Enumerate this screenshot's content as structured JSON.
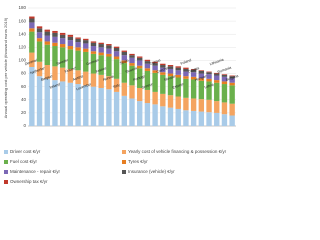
{
  "chart_data": {
    "type": "stacked-bar",
    "y_label": "Annual operating cost per vehicle (thousand euros 2019)",
    "categories": [
      "Denmark",
      "Netherlands",
      "Belgium",
      "Ireland",
      "Sweden",
      "Finland",
      "Austria",
      "Luxembourg",
      "Germany",
      "France",
      "Norway",
      "Italy",
      "Spain",
      "Slovenia",
      "Portugal",
      "Greece",
      "Cyprus",
      "Czechia",
      "Slovakia",
      "Estonia",
      "Poland",
      "Croatia",
      "Hungary",
      "Latvia",
      "Lithuania",
      "Romania",
      "Bulgaria"
    ],
    "series": [
      {
        "name": "Driver cost €/yr",
        "color": "#a9cbe8",
        "values": [
          90,
          76,
          72,
          70,
          68,
          66,
          64,
          62,
          60,
          58,
          56,
          52,
          46,
          42,
          38,
          35,
          33,
          30,
          28,
          26,
          24,
          23,
          22,
          21,
          20,
          18,
          16
        ]
      },
      {
        "name": "Yearly cost of vehicle financing & possession €/yr",
        "color": "#f4a460",
        "values": [
          22,
          22,
          21,
          21,
          21,
          21,
          21,
          21,
          20,
          20,
          20,
          20,
          20,
          20,
          20,
          20,
          19,
          19,
          19,
          19,
          19,
          19,
          19,
          19,
          18,
          18,
          18
        ]
      },
      {
        "name": "Fuel cost €/yr",
        "color": "#6ab04c",
        "values": [
          32,
          31,
          31,
          31,
          31,
          30,
          30,
          30,
          30,
          30,
          30,
          30,
          30,
          30,
          30,
          29,
          29,
          29,
          29,
          29,
          29,
          29,
          28,
          28,
          28,
          28,
          28
        ]
      },
      {
        "name": "Tyres €/yr",
        "color": "#e67e22",
        "values": [
          5,
          5,
          5,
          5,
          5,
          5,
          5,
          5,
          4,
          4,
          4,
          4,
          4,
          4,
          4,
          4,
          4,
          4,
          4,
          4,
          4,
          4,
          4,
          4,
          4,
          4,
          4
        ]
      },
      {
        "name": "Maintenance - repair €/yr",
        "color": "#7b68b5",
        "values": [
          9,
          9,
          9,
          9,
          9,
          9,
          8,
          8,
          8,
          8,
          8,
          8,
          8,
          8,
          8,
          7,
          7,
          7,
          7,
          7,
          7,
          7,
          7,
          7,
          7,
          7,
          7
        ]
      },
      {
        "name": "Insurance (vehicle) €/yr",
        "color": "#555555",
        "values": [
          6,
          6,
          6,
          6,
          5,
          5,
          5,
          5,
          5,
          5,
          5,
          5,
          5,
          4,
          4,
          4,
          4,
          4,
          4,
          4,
          4,
          4,
          4,
          3,
          3,
          3,
          3
        ]
      },
      {
        "name": "Ownership tax €/yr",
        "color": "#c0392b",
        "values": [
          3,
          3,
          3,
          3,
          3,
          3,
          2,
          2,
          2,
          2,
          2,
          2,
          2,
          2,
          2,
          2,
          2,
          2,
          2,
          2,
          2,
          1,
          1,
          1,
          1,
          1,
          1
        ]
      }
    ],
    "ylim": [
      0,
      180
    ],
    "yticks": [
      0,
      20,
      40,
      60,
      80,
      100,
      120,
      140,
      160,
      180
    ],
    "grid": true
  }
}
